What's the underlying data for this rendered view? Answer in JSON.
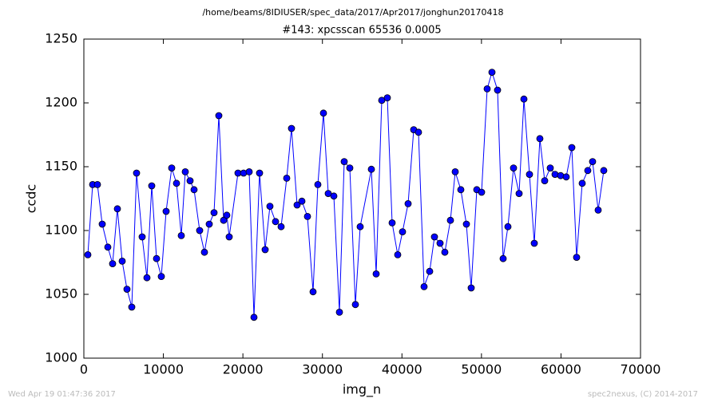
{
  "chart_data": {
    "type": "line",
    "suptitle": "/home/beams/8IDIUSER/spec_data/2017/Apr2017/jonghun20170418",
    "title": "#143: xpcsscan 65536 0.0005",
    "xlabel": "img_n",
    "ylabel": "ccdc",
    "footer_left": "Wed Apr 19 01:47:36 2017",
    "footer_right": "spec2nexus, (C) 2014-2017",
    "x": [
      502,
      1105,
      1707,
      2310,
      3013,
      3615,
      4218,
      4821,
      5423,
      6026,
      6628,
      7331,
      7934,
      8536,
      9139,
      9742,
      10344,
      11047,
      11650,
      12252,
      12755,
      13357,
      13859,
      14562,
      15165,
      15768,
      16370,
      16973,
      17575,
      17977,
      18278,
      19383,
      20086,
      20789,
      21392,
      22095,
      22798,
      23400,
      24103,
      24806,
      25509,
      26112,
      26815,
      27417,
      28120,
      28823,
      29426,
      30129,
      30732,
      31435,
      32138,
      32740,
      33443,
      34146,
      34749,
      36155,
      36757,
      37460,
      38163,
      38766,
      39469,
      40072,
      40775,
      41478,
      42080,
      42783,
      43486,
      44089,
      44792,
      45394,
      46097,
      46700,
      47403,
      48106,
      48709,
      49412,
      50014,
      50717,
      51320,
      52023,
      52726,
      53328,
      54031,
      54734,
      55337,
      56040,
      56642,
      57345,
      57948,
      58651,
      59254,
      59957,
      60659,
      61362,
      61965,
      62668,
      63371,
      63973,
      64676,
      65379
    ],
    "series": [
      {
        "name": "ccdc",
        "color": "#0000ff",
        "marker_edge": "#000000",
        "values": [
          1081,
          1136,
          1136,
          1105,
          1087,
          1074,
          1117,
          1076,
          1054,
          1040,
          1145,
          1095,
          1063,
          1135,
          1078,
          1064,
          1115,
          1149,
          1137,
          1096,
          1146,
          1139,
          1132,
          1100,
          1083,
          1105,
          1114,
          1190,
          1108,
          1112,
          1095,
          1145,
          1145,
          1146,
          1032,
          1145,
          1085,
          1119,
          1107,
          1103,
          1141,
          1180,
          1120,
          1123,
          1111,
          1052,
          1136,
          1192,
          1129,
          1127,
          1036,
          1154,
          1149,
          1042,
          1103,
          1148,
          1066,
          1202,
          1204,
          1106,
          1081,
          1099,
          1121,
          1179,
          1177,
          1056,
          1068,
          1095,
          1090,
          1083,
          1108,
          1146,
          1132,
          1105,
          1055,
          1132,
          1130,
          1211,
          1224,
          1210,
          1078,
          1103,
          1149,
          1129,
          1203,
          1144,
          1090,
          1172,
          1139,
          1149,
          1144,
          1143,
          1142,
          1165,
          1079,
          1137,
          1147,
          1154,
          1116,
          1147
        ]
      }
    ],
    "xlim": [
      0,
      70000
    ],
    "xticks": [
      0,
      10000,
      20000,
      30000,
      40000,
      50000,
      60000,
      70000
    ],
    "ylim": [
      1000,
      1250
    ],
    "yticks": [
      1000,
      1050,
      1100,
      1150,
      1200,
      1250
    ],
    "grid": false
  }
}
